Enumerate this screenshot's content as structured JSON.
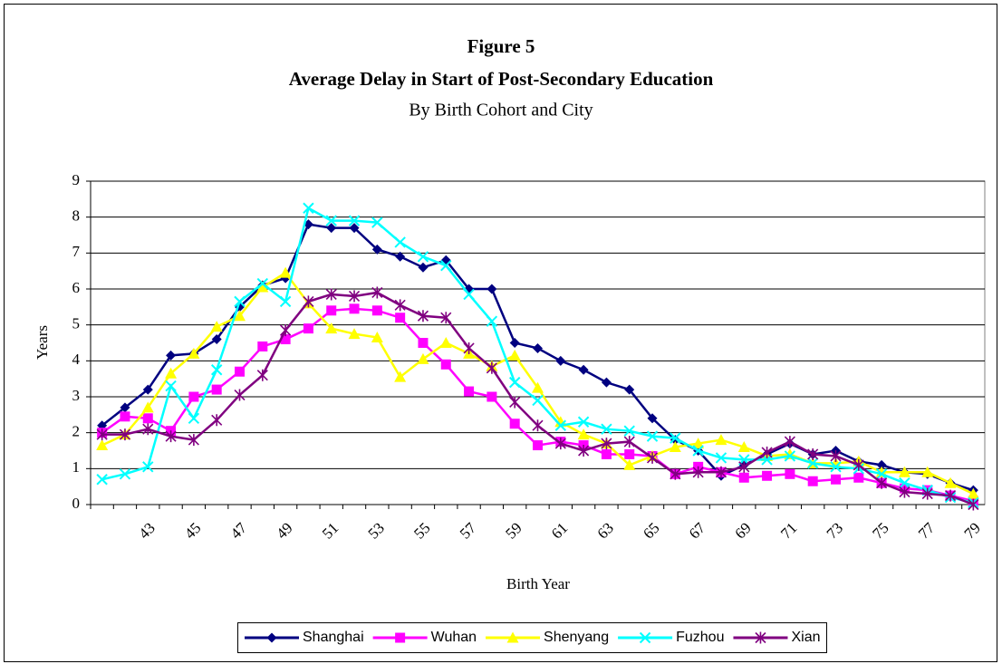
{
  "chart_data": {
    "type": "line",
    "title": "Figure 5",
    "subtitle": "Average Delay in Start of Post-Secondary Education",
    "subtitle2": "By Birth Cohort and City",
    "x_label": "Birth Year",
    "y_label": "Years",
    "categories": [
      null,
      null,
      "43",
      null,
      "45",
      null,
      "47",
      null,
      "49",
      null,
      "51",
      null,
      "53",
      null,
      "55",
      null,
      "57",
      null,
      "59",
      null,
      "61",
      null,
      "63",
      null,
      "65",
      null,
      "67",
      null,
      "69",
      null,
      "71",
      null,
      "73",
      null,
      "75",
      null,
      "77",
      null,
      "79"
    ],
    "ylim": [
      0,
      9
    ],
    "yticks": [
      0,
      1,
      2,
      3,
      4,
      5,
      6,
      7,
      8,
      9
    ],
    "grid": true,
    "legend": "bottom",
    "series": [
      {
        "name": "Shanghai",
        "color": "#000080",
        "values": [
          2.2,
          2.7,
          3.2,
          4.15,
          4.2,
          4.6,
          5.5,
          6.1,
          6.3,
          7.8,
          7.7,
          7.7,
          7.1,
          6.9,
          6.6,
          6.8,
          6.0,
          6.0,
          4.5,
          4.35,
          4.0,
          3.75,
          3.4,
          3.2,
          2.4,
          1.8,
          1.5,
          0.8,
          1.1,
          1.4,
          1.7,
          1.4,
          1.5,
          1.2,
          1.1,
          0.9,
          0.85,
          0.6,
          0.4
        ]
      },
      {
        "name": "Wuhan",
        "color": "#ff00ff",
        "values": [
          2.0,
          2.45,
          2.4,
          2.05,
          3.0,
          3.2,
          3.7,
          4.4,
          4.6,
          4.9,
          5.4,
          5.45,
          5.4,
          5.2,
          4.5,
          3.9,
          3.15,
          3.0,
          2.25,
          1.65,
          1.75,
          1.65,
          1.4,
          1.4,
          1.35,
          0.85,
          1.05,
          0.9,
          0.75,
          0.8,
          0.85,
          0.65,
          0.7,
          0.75,
          0.6,
          0.45,
          0.4,
          0.25,
          0.1
        ]
      },
      {
        "name": "Shenyang",
        "color": "#ffff00",
        "values": [
          1.65,
          1.95,
          2.7,
          3.65,
          4.2,
          4.95,
          5.25,
          6.05,
          6.45,
          5.6,
          4.9,
          4.75,
          4.65,
          3.55,
          4.05,
          4.5,
          4.2,
          3.85,
          4.15,
          3.25,
          2.3,
          1.95,
          1.7,
          1.1,
          1.35,
          1.6,
          1.7,
          1.8,
          1.6,
          1.35,
          1.4,
          1.15,
          1.15,
          1.2,
          0.9,
          0.9,
          0.9,
          0.6,
          0.3
        ]
      },
      {
        "name": "Fuzhou",
        "color": "#00ffff",
        "values": [
          0.7,
          0.85,
          1.05,
          3.3,
          2.4,
          3.75,
          5.65,
          6.15,
          5.65,
          8.25,
          7.9,
          7.9,
          7.85,
          7.3,
          6.9,
          6.65,
          5.85,
          5.1,
          3.4,
          2.9,
          2.2,
          2.3,
          2.1,
          2.05,
          1.9,
          1.85,
          1.5,
          1.3,
          1.25,
          1.25,
          1.35,
          1.15,
          1.05,
          1.0,
          0.85,
          0.6,
          0.4,
          0.2,
          0.05
        ]
      },
      {
        "name": "Xian",
        "color": "#800080",
        "values": [
          1.95,
          1.95,
          2.1,
          1.9,
          1.8,
          2.35,
          3.05,
          3.6,
          4.85,
          5.65,
          5.85,
          5.8,
          5.9,
          5.55,
          5.25,
          5.2,
          4.35,
          3.8,
          2.85,
          2.2,
          1.7,
          1.5,
          1.7,
          1.75,
          1.3,
          0.85,
          0.9,
          0.9,
          1.05,
          1.45,
          1.75,
          1.4,
          1.35,
          1.1,
          0.6,
          0.35,
          0.3,
          0.25,
          0.0
        ]
      }
    ]
  }
}
